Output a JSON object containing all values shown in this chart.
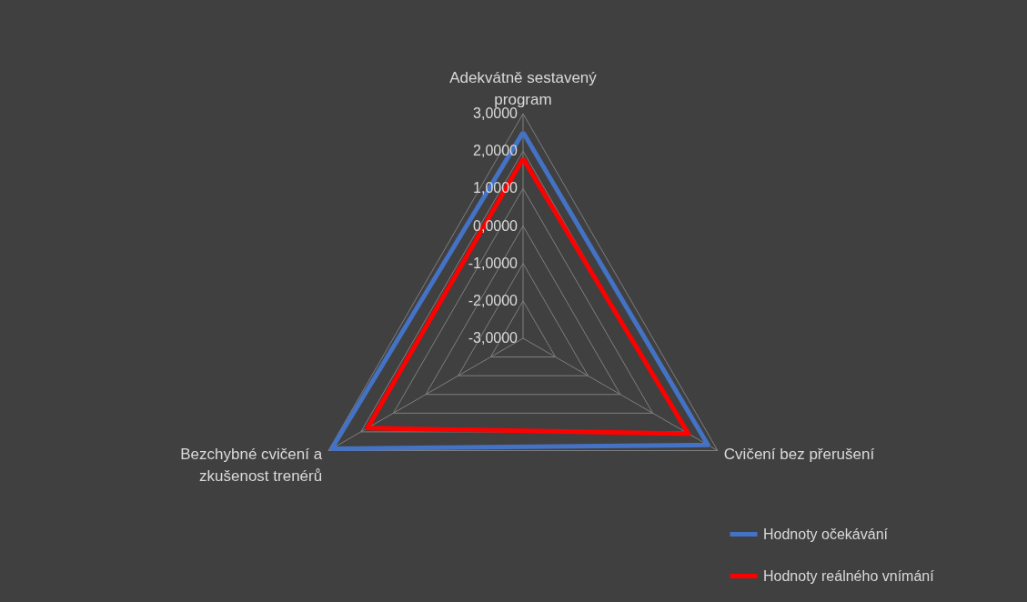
{
  "chart_data": {
    "type": "radar",
    "categories": [
      "Adekvátně sestavený program",
      "Cvičení bez přerušení",
      "Bezchybné cvičení a zkušenost trenérů"
    ],
    "series": [
      {
        "name": "Hodnoty očekávání",
        "color": "#4472c4",
        "values": [
          2.5,
          2.7,
          2.9
        ]
      },
      {
        "name": "Hodnoty reálného vnímání",
        "color": "#ff0000",
        "values": [
          1.8,
          2.1,
          1.8
        ]
      }
    ],
    "ylim": [
      -3,
      3
    ],
    "yticks": [
      {
        "value": -3,
        "label": "-3,0000"
      },
      {
        "value": -2,
        "label": "-2,0000"
      },
      {
        "value": -1,
        "label": "-1,0000"
      },
      {
        "value": 0,
        "label": "0,0000"
      },
      {
        "value": 1,
        "label": "1,0000"
      },
      {
        "value": 2,
        "label": "2,0000"
      },
      {
        "value": 3,
        "label": "3,0000"
      }
    ],
    "grid": true,
    "legend": "bottom right"
  }
}
